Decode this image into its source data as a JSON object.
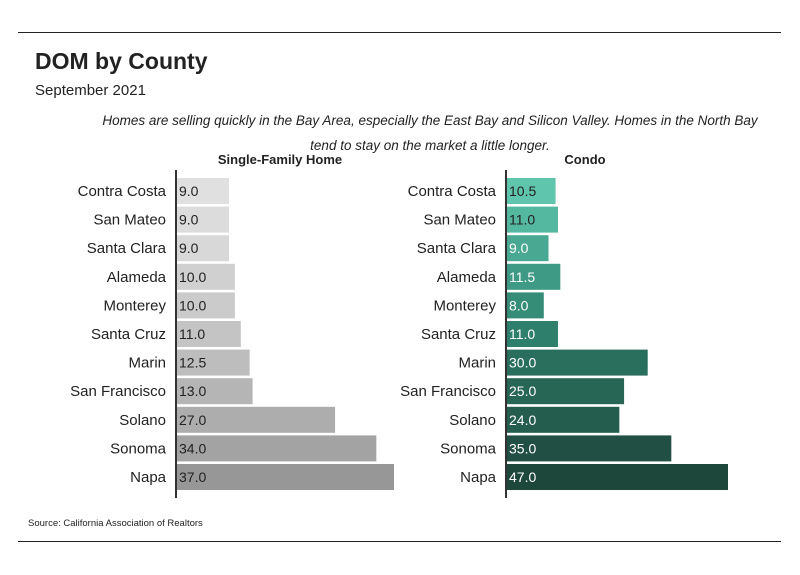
{
  "title": "DOM by County",
  "subtitle": "September 2021",
  "description": "Homes are selling quickly in the Bay Area, especially the East Bay and Silicon Valley. Homes in the North Bay tend to stay on the market a little longer.",
  "source": "Source:  California Association of Realtors",
  "chart_data": [
    {
      "type": "bar",
      "orientation": "horizontal",
      "title": "Single-Family Home",
      "categories": [
        "Contra Costa",
        "San Mateo",
        "Santa Clara",
        "Alameda",
        "Monterey",
        "Santa Cruz",
        "Marin",
        "San Francisco",
        "Solano",
        "Sonoma",
        "Napa"
      ],
      "values": [
        9.0,
        9.0,
        9.0,
        10.0,
        10.0,
        11.0,
        12.5,
        13.0,
        27.0,
        34.0,
        37.0
      ],
      "value_labels": [
        "9.0",
        "9.0",
        "9.0",
        "10.0",
        "10.0",
        "11.0",
        "12.5",
        "13.0",
        "27.0",
        "34.0",
        "37.0"
      ],
      "colors": [
        "#e0e0e0",
        "#dcdcdc",
        "#d8d8d8",
        "#d0d0d0",
        "#cbcbcb",
        "#c4c4c4",
        "#bdbdbd",
        "#b5b5b5",
        "#adadad",
        "#a3a3a3",
        "#979797"
      ],
      "xlim": [
        0,
        37
      ]
    },
    {
      "type": "bar",
      "orientation": "horizontal",
      "title": "Condo",
      "categories": [
        "Contra Costa",
        "San Mateo",
        "Santa Clara",
        "Alameda",
        "Monterey",
        "Santa Cruz",
        "Marin",
        "San Francisco",
        "Solano",
        "Sonoma",
        "Napa"
      ],
      "values": [
        10.5,
        11.0,
        9.0,
        11.5,
        8.0,
        11.0,
        30.0,
        25.0,
        24.0,
        35.0,
        47.0
      ],
      "value_labels": [
        "10.5",
        "11.0",
        "9.0",
        "11.5",
        "8.0",
        "11.0",
        "30.0",
        "25.0",
        "24.0",
        "35.0",
        "47.0"
      ],
      "colors": [
        "#5fc6ad",
        "#54b8a0",
        "#48a891",
        "#3e9a84",
        "#358c77",
        "#2e7f6b",
        "#2a6f5e",
        "#276555",
        "#245c4e",
        "#214f43",
        "#1e473c"
      ],
      "xlim": [
        0,
        47
      ]
    }
  ]
}
